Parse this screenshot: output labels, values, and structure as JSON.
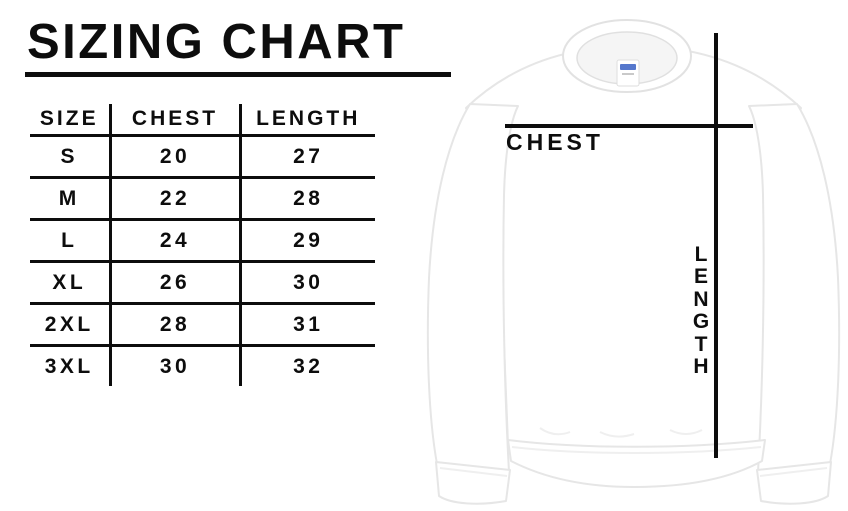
{
  "title": "SIZING CHART",
  "chart_data": {
    "type": "table",
    "title": "SIZING CHART",
    "columns": [
      "SIZE",
      "CHEST",
      "LENGTH"
    ],
    "rows": [
      [
        "S",
        20,
        27
      ],
      [
        "M",
        22,
        28
      ],
      [
        "L",
        24,
        29
      ],
      [
        "XL",
        26,
        30
      ],
      [
        "2XL",
        28,
        31
      ],
      [
        "3XL",
        30,
        32
      ]
    ]
  },
  "diagram": {
    "chest_label": "CHEST",
    "length_label": "LENGTH",
    "length_letters": [
      "L",
      "E",
      "N",
      "G",
      "T",
      "H"
    ]
  },
  "colors": {
    "ink": "#0d0d0d",
    "garment": "#ffffff",
    "garment_outline": "#e6e6e6",
    "tag_accent": "#5577cc"
  }
}
